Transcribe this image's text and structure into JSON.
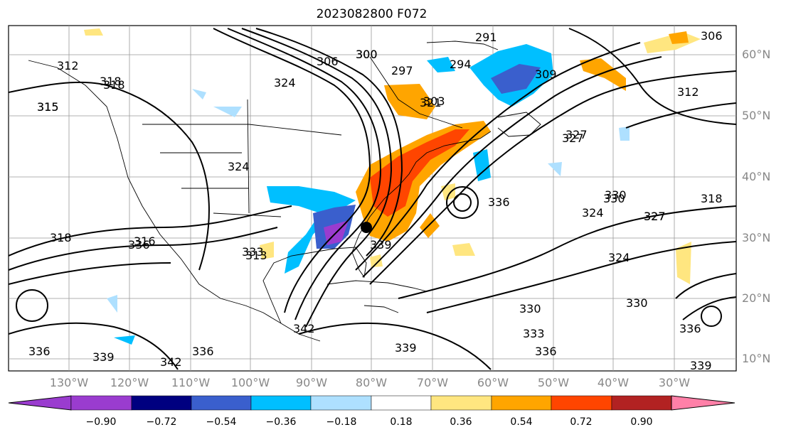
{
  "title": "2023082800 F072",
  "latitude_labels": [
    "60°N",
    "50°N",
    "40°N",
    "30°N",
    "20°N",
    "10°N"
  ],
  "longitude_labels": [
    "130°W",
    "120°W",
    "110°W",
    "100°W",
    "90°W",
    "80°W",
    "70°W",
    "60°W",
    "50°W",
    "40°W",
    "30°W"
  ],
  "colorbar": {
    "ticks": [
      "−0.90",
      "−0.72",
      "−0.54",
      "−0.36",
      "−0.18",
      "0.18",
      "0.36",
      "0.54",
      "0.72",
      "0.90"
    ],
    "colors": [
      "#9a3ccf",
      "#000080",
      "#3a5fcd",
      "#00bfff",
      "#aee0ff",
      "#ffffff",
      "#ffe680",
      "#ffa500",
      "#ff4500",
      "#b22222",
      "#ff80a8"
    ]
  },
  "contour_labels": [
    "291",
    "294",
    "297",
    "300",
    "306",
    "309",
    "312",
    "315",
    "318",
    "321",
    "324",
    "327",
    "330",
    "333",
    "336",
    "339",
    "342",
    "306",
    "318",
    "312",
    "327",
    "330",
    "324",
    "327",
    "324",
    "330",
    "333",
    "336",
    "339",
    "339",
    "336",
    "342",
    "336",
    "339",
    "336",
    "330",
    "327",
    "315",
    "318",
    "316",
    "313",
    "324",
    "318",
    "303",
    "336",
    "300"
  ],
  "marker": "hurricane-position"
}
